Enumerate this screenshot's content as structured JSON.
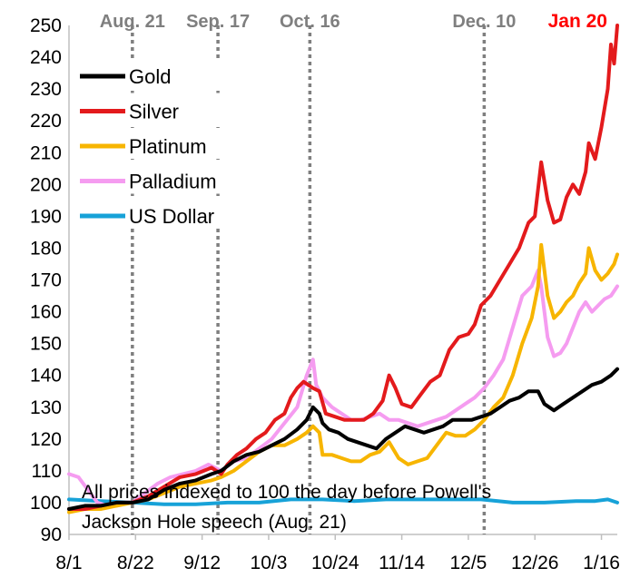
{
  "chart_data": {
    "type": "line",
    "title": "",
    "xlabel": "",
    "ylabel": "",
    "ylim": [
      90,
      250
    ],
    "y_ticks": [
      90,
      100,
      110,
      120,
      130,
      140,
      150,
      160,
      170,
      180,
      190,
      200,
      210,
      220,
      230,
      240,
      250
    ],
    "x_tick_labels": [
      "8/1",
      "8/22",
      "9/12",
      "10/3",
      "10/24",
      "11/14",
      "12/5",
      "12/26",
      "1/16"
    ],
    "x_tick_days": [
      0,
      21,
      42,
      63,
      84,
      105,
      126,
      147,
      168
    ],
    "x_range_days": [
      0,
      173
    ],
    "grid": false,
    "legend_position": "top-left",
    "events": [
      {
        "label": "Aug. 21",
        "day": 20,
        "color": "#7f7f7f"
      },
      {
        "label": "Sep. 17",
        "day": 47,
        "color": "#7f7f7f"
      },
      {
        "label": "Oct. 16",
        "day": 76,
        "color": "#7f7f7f"
      },
      {
        "label": "Dec. 10",
        "day": 131,
        "color": "#7f7f7f"
      }
    ],
    "end_label": {
      "label": "Jan 20",
      "color": "#ff0000"
    },
    "annotation": {
      "line1": "All prices indexed to 100 the day before Powell's",
      "line2": "Jackson Hole speech (Aug. 21)"
    },
    "series": [
      {
        "name": "Gold",
        "color": "#000000",
        "points": [
          [
            0,
            98
          ],
          [
            5,
            99
          ],
          [
            10,
            99
          ],
          [
            15,
            100
          ],
          [
            20,
            100
          ],
          [
            25,
            101
          ],
          [
            30,
            104
          ],
          [
            35,
            106
          ],
          [
            40,
            107
          ],
          [
            45,
            109
          ],
          [
            48,
            110
          ],
          [
            52,
            113
          ],
          [
            56,
            115
          ],
          [
            60,
            116
          ],
          [
            64,
            118
          ],
          [
            68,
            120
          ],
          [
            72,
            123
          ],
          [
            75,
            126
          ],
          [
            77,
            130
          ],
          [
            79,
            128
          ],
          [
            80,
            125
          ],
          [
            82,
            123
          ],
          [
            85,
            122
          ],
          [
            88,
            120
          ],
          [
            91,
            119
          ],
          [
            94,
            118
          ],
          [
            97,
            117
          ],
          [
            100,
            120
          ],
          [
            103,
            122
          ],
          [
            106,
            124
          ],
          [
            109,
            123
          ],
          [
            112,
            122
          ],
          [
            115,
            123
          ],
          [
            118,
            124
          ],
          [
            121,
            126
          ],
          [
            124,
            126
          ],
          [
            127,
            126
          ],
          [
            130,
            127
          ],
          [
            133,
            128
          ],
          [
            136,
            130
          ],
          [
            139,
            132
          ],
          [
            142,
            133
          ],
          [
            145,
            135
          ],
          [
            148,
            135
          ],
          [
            150,
            131
          ],
          [
            153,
            129
          ],
          [
            156,
            131
          ],
          [
            159,
            133
          ],
          [
            162,
            135
          ],
          [
            165,
            137
          ],
          [
            168,
            138
          ],
          [
            171,
            140
          ],
          [
            173,
            142
          ]
        ]
      },
      {
        "name": "Silver",
        "color": "#e31a1c",
        "points": [
          [
            0,
            98
          ],
          [
            5,
            98
          ],
          [
            10,
            99
          ],
          [
            15,
            100
          ],
          [
            20,
            100
          ],
          [
            25,
            102
          ],
          [
            30,
            105
          ],
          [
            35,
            108
          ],
          [
            40,
            109
          ],
          [
            45,
            111
          ],
          [
            48,
            109
          ],
          [
            50,
            112
          ],
          [
            53,
            115
          ],
          [
            56,
            117
          ],
          [
            59,
            120
          ],
          [
            62,
            122
          ],
          [
            65,
            126
          ],
          [
            68,
            128
          ],
          [
            70,
            133
          ],
          [
            72,
            136
          ],
          [
            74,
            138
          ],
          [
            77,
            136
          ],
          [
            79,
            135
          ],
          [
            81,
            128
          ],
          [
            84,
            127
          ],
          [
            87,
            126
          ],
          [
            90,
            126
          ],
          [
            93,
            126
          ],
          [
            96,
            128
          ],
          [
            99,
            132
          ],
          [
            101,
            140
          ],
          [
            103,
            136
          ],
          [
            105,
            131
          ],
          [
            108,
            130
          ],
          [
            111,
            134
          ],
          [
            114,
            138
          ],
          [
            117,
            140
          ],
          [
            120,
            148
          ],
          [
            123,
            152
          ],
          [
            126,
            153
          ],
          [
            128,
            156
          ],
          [
            130,
            162
          ],
          [
            133,
            165
          ],
          [
            136,
            170
          ],
          [
            139,
            175
          ],
          [
            142,
            180
          ],
          [
            145,
            188
          ],
          [
            147,
            190
          ],
          [
            149,
            207
          ],
          [
            151,
            195
          ],
          [
            153,
            188
          ],
          [
            155,
            189
          ],
          [
            157,
            196
          ],
          [
            159,
            200
          ],
          [
            161,
            197
          ],
          [
            163,
            204
          ],
          [
            164,
            213
          ],
          [
            166,
            208
          ],
          [
            168,
            218
          ],
          [
            170,
            230
          ],
          [
            171,
            244
          ],
          [
            172,
            238
          ],
          [
            173,
            250
          ]
        ]
      },
      {
        "name": "Platinum",
        "color": "#f7b500",
        "points": [
          [
            0,
            97
          ],
          [
            5,
            98
          ],
          [
            10,
            98
          ],
          [
            15,
            99
          ],
          [
            20,
            100
          ],
          [
            25,
            101
          ],
          [
            30,
            103
          ],
          [
            35,
            105
          ],
          [
            40,
            106
          ],
          [
            45,
            107
          ],
          [
            48,
            108
          ],
          [
            52,
            110
          ],
          [
            56,
            113
          ],
          [
            60,
            116
          ],
          [
            64,
            118
          ],
          [
            68,
            118
          ],
          [
            72,
            120
          ],
          [
            75,
            122
          ],
          [
            77,
            124
          ],
          [
            79,
            122
          ],
          [
            80,
            115
          ],
          [
            83,
            115
          ],
          [
            86,
            114
          ],
          [
            89,
            113
          ],
          [
            92,
            113
          ],
          [
            95,
            115
          ],
          [
            98,
            116
          ],
          [
            101,
            119
          ],
          [
            104,
            114
          ],
          [
            107,
            112
          ],
          [
            110,
            113
          ],
          [
            113,
            114
          ],
          [
            116,
            118
          ],
          [
            119,
            122
          ],
          [
            122,
            121
          ],
          [
            125,
            121
          ],
          [
            128,
            123
          ],
          [
            131,
            126
          ],
          [
            134,
            130
          ],
          [
            137,
            133
          ],
          [
            140,
            140
          ],
          [
            143,
            150
          ],
          [
            146,
            158
          ],
          [
            148,
            168
          ],
          [
            149,
            181
          ],
          [
            151,
            165
          ],
          [
            153,
            158
          ],
          [
            155,
            160
          ],
          [
            157,
            163
          ],
          [
            159,
            165
          ],
          [
            161,
            169
          ],
          [
            163,
            172
          ],
          [
            164,
            180
          ],
          [
            166,
            173
          ],
          [
            168,
            170
          ],
          [
            170,
            172
          ],
          [
            172,
            175
          ],
          [
            173,
            178
          ]
        ]
      },
      {
        "name": "Palladium",
        "color": "#f59cf0",
        "points": [
          [
            0,
            109
          ],
          [
            3,
            108
          ],
          [
            6,
            104
          ],
          [
            9,
            100
          ],
          [
            12,
            99
          ],
          [
            15,
            99
          ],
          [
            18,
            100
          ],
          [
            20,
            100
          ],
          [
            24,
            103
          ],
          [
            28,
            106
          ],
          [
            32,
            108
          ],
          [
            36,
            109
          ],
          [
            40,
            110
          ],
          [
            44,
            112
          ],
          [
            48,
            110
          ],
          [
            52,
            113
          ],
          [
            56,
            114
          ],
          [
            60,
            117
          ],
          [
            64,
            120
          ],
          [
            68,
            125
          ],
          [
            72,
            130
          ],
          [
            75,
            140
          ],
          [
            77,
            145
          ],
          [
            78,
            137
          ],
          [
            80,
            133
          ],
          [
            83,
            130
          ],
          [
            86,
            128
          ],
          [
            89,
            126
          ],
          [
            92,
            126
          ],
          [
            95,
            127
          ],
          [
            98,
            128
          ],
          [
            101,
            126
          ],
          [
            104,
            126
          ],
          [
            107,
            125
          ],
          [
            110,
            124
          ],
          [
            113,
            125
          ],
          [
            116,
            126
          ],
          [
            119,
            127
          ],
          [
            122,
            129
          ],
          [
            125,
            131
          ],
          [
            128,
            133
          ],
          [
            131,
            136
          ],
          [
            134,
            140
          ],
          [
            137,
            145
          ],
          [
            140,
            155
          ],
          [
            143,
            165
          ],
          [
            146,
            168
          ],
          [
            148,
            173
          ],
          [
            149,
            168
          ],
          [
            151,
            152
          ],
          [
            153,
            146
          ],
          [
            155,
            147
          ],
          [
            157,
            150
          ],
          [
            159,
            155
          ],
          [
            161,
            160
          ],
          [
            163,
            163
          ],
          [
            165,
            160
          ],
          [
            167,
            162
          ],
          [
            169,
            164
          ],
          [
            171,
            165
          ],
          [
            173,
            168
          ]
        ]
      },
      {
        "name": "US Dollar",
        "color": "#17a2d8",
        "points": [
          [
            0,
            101
          ],
          [
            10,
            100.5
          ],
          [
            20,
            100
          ],
          [
            30,
            99.5
          ],
          [
            40,
            99.5
          ],
          [
            50,
            100
          ],
          [
            60,
            100
          ],
          [
            70,
            101
          ],
          [
            80,
            101
          ],
          [
            90,
            100.5
          ],
          [
            100,
            101
          ],
          [
            110,
            101
          ],
          [
            120,
            101
          ],
          [
            130,
            101
          ],
          [
            140,
            100
          ],
          [
            150,
            100
          ],
          [
            160,
            100.5
          ],
          [
            166,
            100.5
          ],
          [
            170,
            101
          ],
          [
            173,
            100
          ]
        ]
      }
    ]
  }
}
